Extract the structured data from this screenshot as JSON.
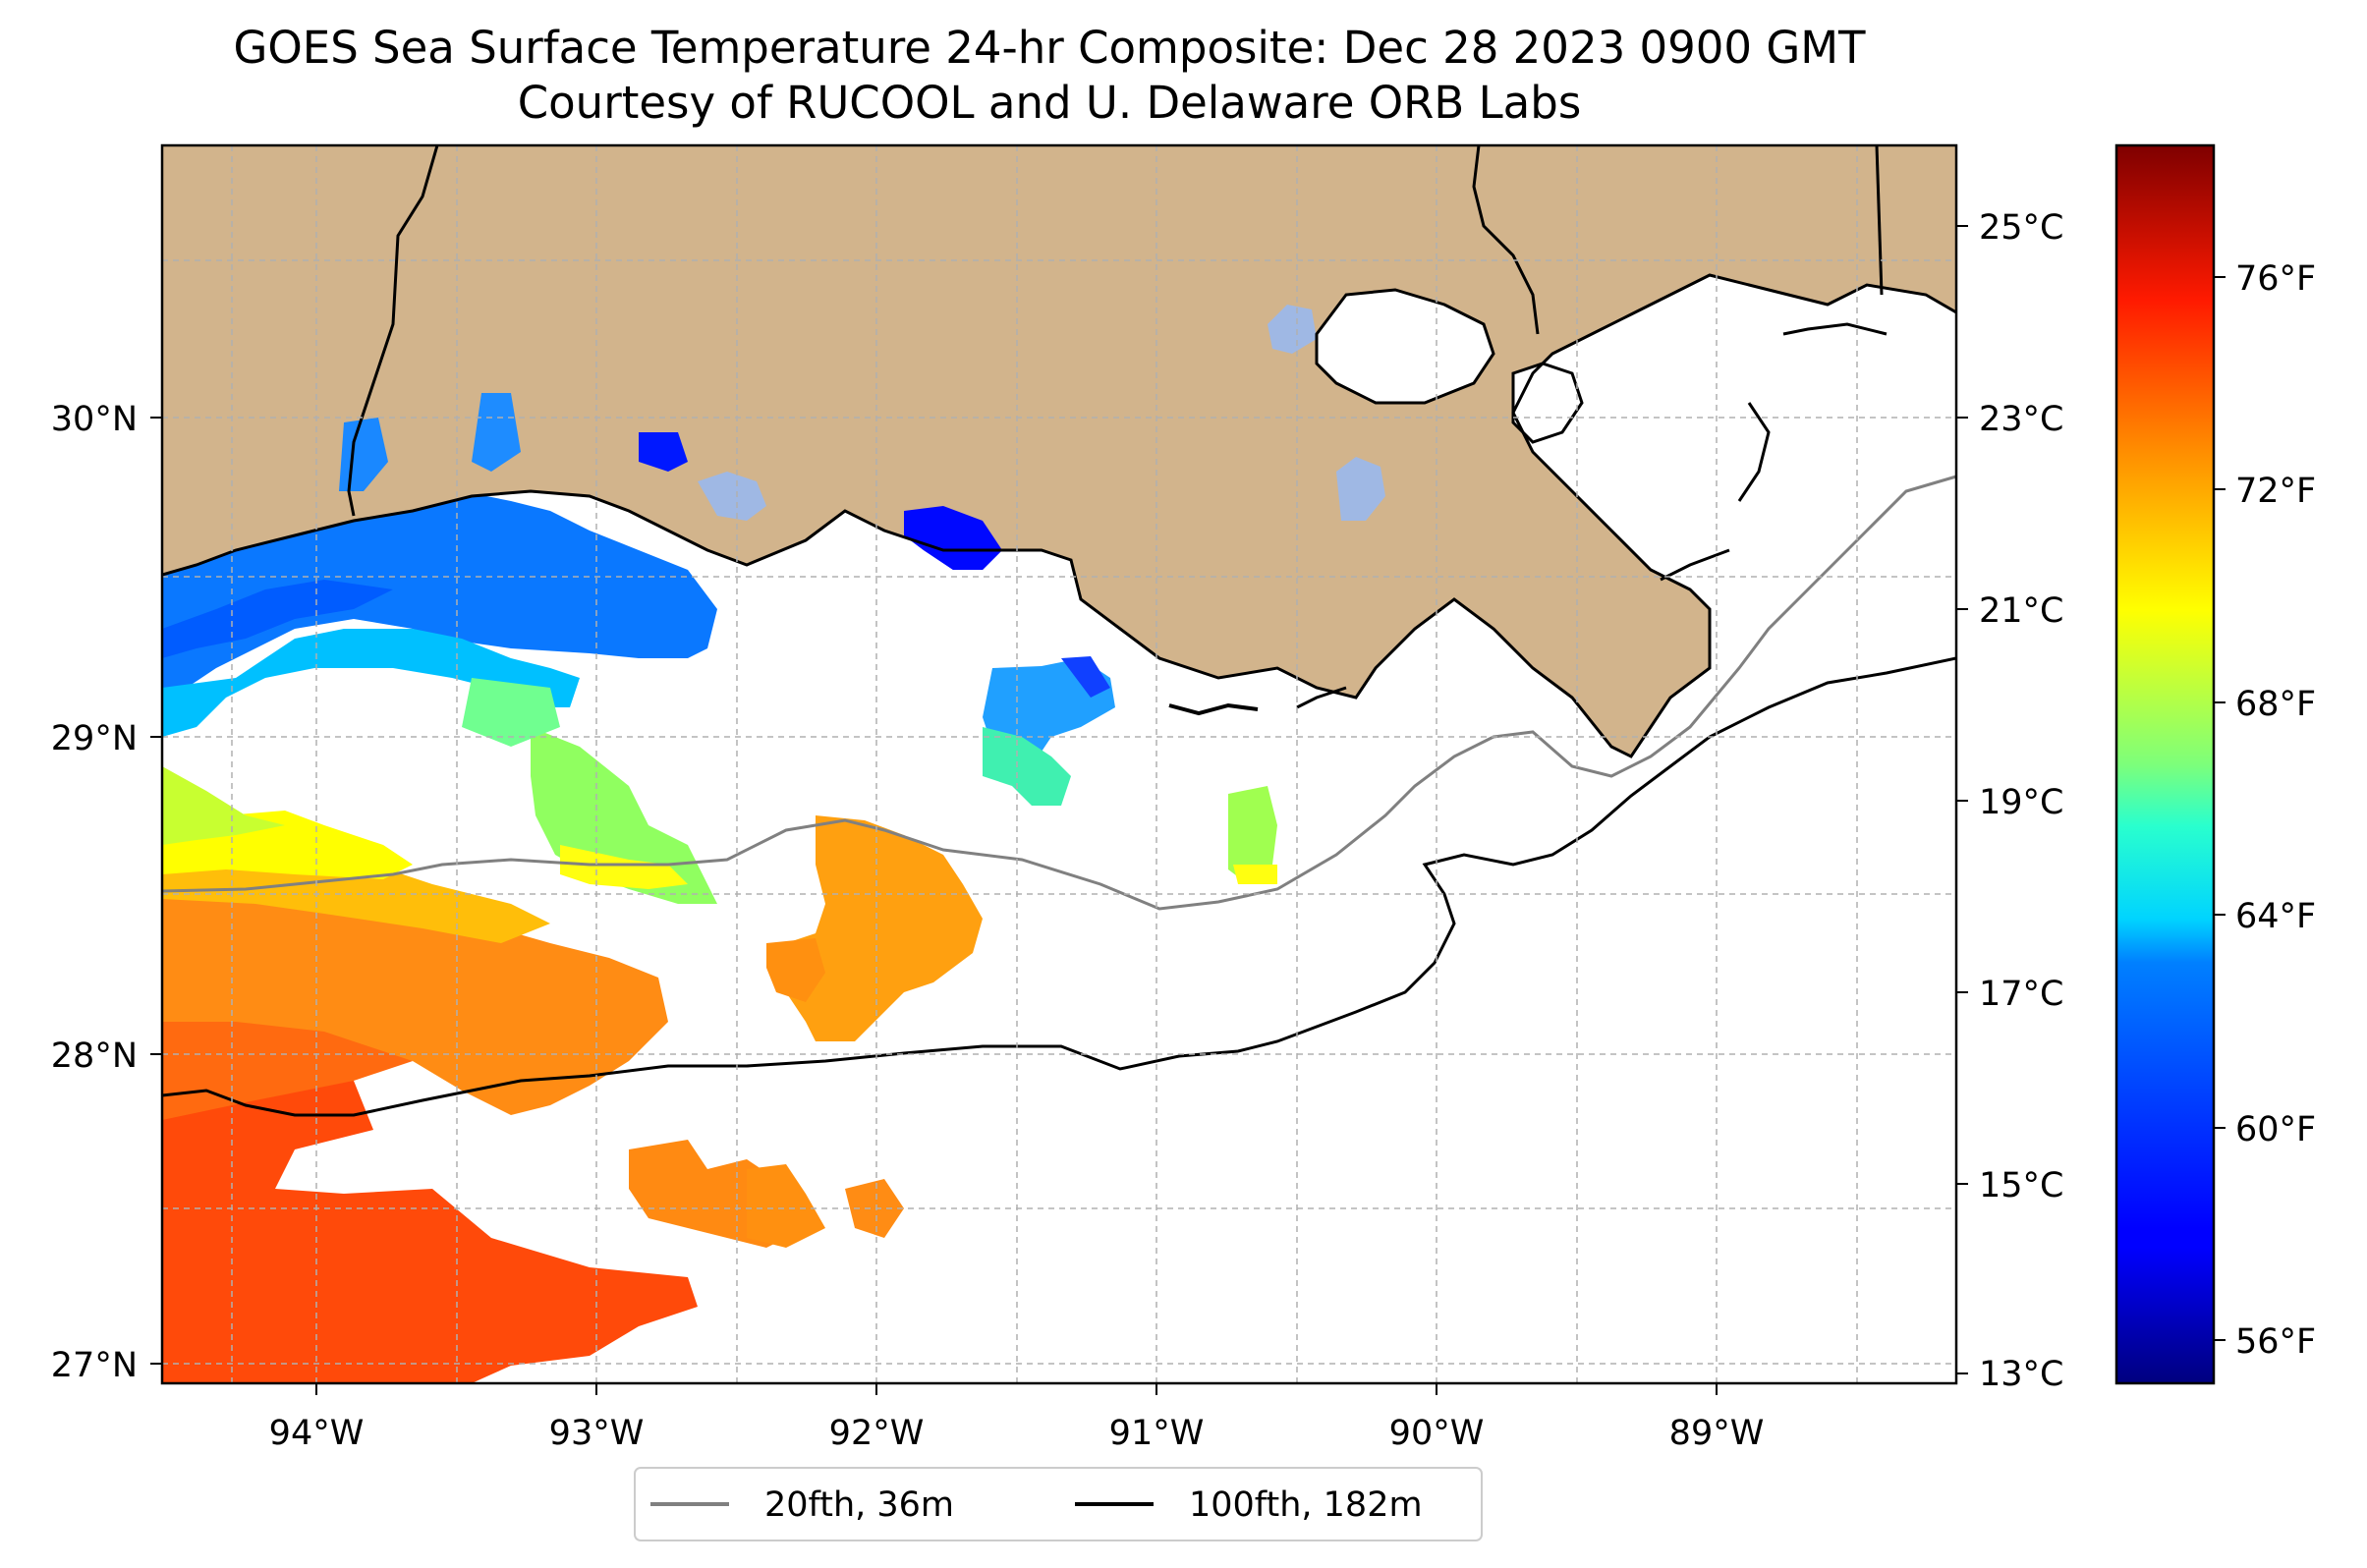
{
  "title": {
    "line1": "GOES Sea Surface Temperature 24-hr Composite: Dec 28 2023 0900 GMT",
    "line2": "Courtesy of RUCOOL and U. Delaware ORB Labs"
  },
  "map": {
    "lon_ticks": [
      "94°W",
      "93°W",
      "92°W",
      "91°W",
      "90°W",
      "89°W"
    ],
    "lat_ticks": [
      "30°N",
      "29°N",
      "28°N",
      "27°N"
    ],
    "land_color": "#d2b48c",
    "grid": "dashed"
  },
  "colorbar": {
    "colormap": "jet",
    "celsius_ticks": [
      "25°C",
      "23°C",
      "21°C",
      "19°C",
      "17°C",
      "15°C",
      "13°C"
    ],
    "fahrenheit_ticks": [
      "76°F",
      "72°F",
      "68°F",
      "64°F",
      "60°F",
      "56°F"
    ]
  },
  "legend": {
    "placement": "bottom-center",
    "items": [
      {
        "label": "20fth, 36m",
        "color": "#808080"
      },
      {
        "label": "100fth, 182m",
        "color": "#000000"
      }
    ]
  }
}
